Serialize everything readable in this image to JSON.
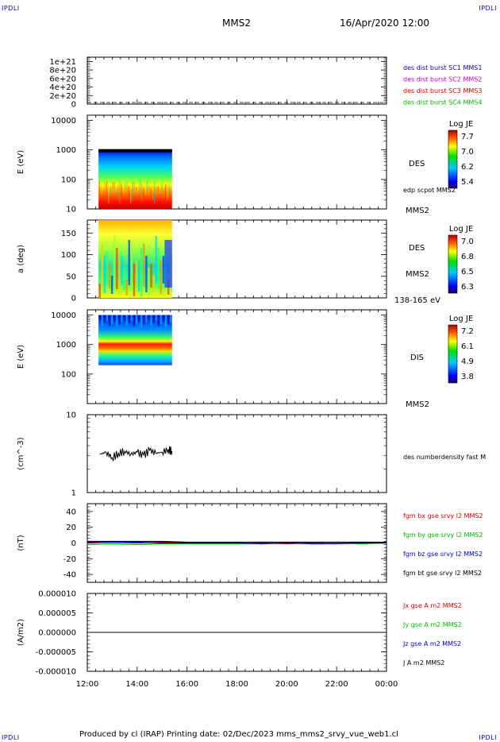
{
  "header": {
    "corner_tl": "IPDLI",
    "corner_tr": "IPDLI",
    "corner_bl": "IPDLI",
    "corner_br": "IPDLI",
    "spacecraft": "MMS2",
    "date": "16/Apr/2020 12:00"
  },
  "footer": {
    "text": "Produced by cl (IRAP)   Printing date: 02/Dec/2023   mms_mms2_srvy_vue_web1.cl"
  },
  "colors": {
    "mms1": "#0000cc",
    "mms2": "#cc00cc",
    "mms3": "#dd0000",
    "mms4": "#00bb00",
    "bx": "#dd0000",
    "by": "#00bb00",
    "bz": "#0000cc",
    "bt": "#000000"
  },
  "chart_data": [
    {
      "id": "panel1",
      "type": "line",
      "ylim": [
        0,
        1.1e+21
      ],
      "yticks": [
        "0",
        "2e+20",
        "4e+20",
        "6e+20",
        "8e+20",
        "1e+21"
      ],
      "ytick_values": [
        0,
        2e+20,
        4e+20,
        6e+20,
        8e+20,
        1e+21
      ],
      "series": [
        {
          "name": "des dist burst SC1 MMS1",
          "color": "#0000cc"
        },
        {
          "name": "des dist burst SC2 MMS2",
          "color": "#cc00cc"
        },
        {
          "name": "des dist burst SC3 MMS3",
          "color": "#dd0000"
        },
        {
          "name": "des dist burst SC4 MMS4",
          "color": "#00bb00"
        }
      ],
      "baseline_dashed": 0
    },
    {
      "id": "panel2",
      "type": "heatmap",
      "ylabel": "E (eV)",
      "yscale": "log",
      "ylim": [
        10,
        15000
      ],
      "yticks": [
        "10",
        "100",
        "1000",
        "10000"
      ],
      "ytick_values": [
        10,
        100,
        1000,
        10000
      ],
      "data_range_hours": [
        12.45,
        15.4
      ],
      "data_ylim": [
        10,
        1000
      ],
      "label": "DES",
      "overlay_label": "edp scpot MMS2",
      "spacecraft": "MMS2",
      "colorbar": {
        "title": "Log JE",
        "ticks": [
          "7.7",
          "7.0",
          "6.2",
          "5.4"
        ]
      }
    },
    {
      "id": "panel3",
      "type": "heatmap",
      "ylabel": "a (deg)",
      "ylim": [
        0,
        180
      ],
      "yticks": [
        "0",
        "50",
        "100",
        "150"
      ],
      "ytick_values": [
        0,
        50,
        100,
        150
      ],
      "data_range_hours": [
        12.45,
        15.4
      ],
      "label": "DES",
      "spacecraft": "MMS2",
      "energy_range": "138-165 eV",
      "colorbar": {
        "title": "Log JE",
        "ticks": [
          "7.0",
          "6.8",
          "6.5",
          "6.3"
        ]
      }
    },
    {
      "id": "panel4",
      "type": "heatmap",
      "ylabel": "E (eV)",
      "yscale": "log",
      "ylim": [
        10,
        15000
      ],
      "yticks": [
        "100",
        "1000",
        "10000"
      ],
      "ytick_values": [
        100,
        1000,
        10000
      ],
      "data_range_hours": [
        12.45,
        15.4
      ],
      "data_ylim": [
        200,
        10000
      ],
      "label": "DIS",
      "spacecraft": "MMS2",
      "colorbar": {
        "title": "Log JE",
        "ticks": [
          "7.2",
          "6.1",
          "4.9",
          "3.8"
        ]
      }
    },
    {
      "id": "panel5",
      "type": "line",
      "ylabel": "(cm^-3)",
      "yscale": "log",
      "ylim": [
        1,
        10
      ],
      "yticks": [
        "1",
        "10"
      ],
      "ytick_values": [
        1,
        10
      ],
      "series": [
        {
          "name": "des numberdensity fast M",
          "color": "#000000",
          "x": [
            12.5,
            12.75,
            13.0,
            13.25,
            13.5,
            13.75,
            14.0,
            14.25,
            14.5,
            14.75,
            15.0,
            15.25,
            15.4
          ],
          "y": [
            3.1,
            3.3,
            2.8,
            3.2,
            3.4,
            3.1,
            3.3,
            3.0,
            3.5,
            3.2,
            3.3,
            3.6,
            3.4
          ]
        }
      ]
    },
    {
      "id": "panel6",
      "type": "line",
      "ylabel": "(nT)",
      "ylim": [
        -50,
        50
      ],
      "yticks": [
        "-40",
        "-20",
        "0",
        "20",
        "40"
      ],
      "ytick_values": [
        -40,
        -20,
        0,
        20,
        40
      ],
      "x": [
        12,
        13,
        14,
        15,
        16,
        17,
        18,
        19,
        20,
        21,
        22,
        23,
        24
      ],
      "series": [
        {
          "name": "fgm bx gse srvy l2 MMS2",
          "color": "#dd0000",
          "values": [
            1,
            1,
            0,
            1,
            0,
            0,
            -1,
            0,
            -1,
            0,
            1,
            0,
            0
          ]
        },
        {
          "name": "fgm by gse srvy l2 MMS2",
          "color": "#00bb00",
          "values": [
            -2,
            -1,
            -2,
            -1,
            -1,
            -1,
            -1,
            -1,
            0,
            -1,
            0,
            -1,
            0
          ]
        },
        {
          "name": "fgm bz gse srvy l2 MMS2",
          "color": "#0000cc",
          "values": [
            0,
            1,
            1,
            0,
            0,
            0,
            0,
            -1,
            0,
            -1,
            -1,
            0,
            0
          ]
        },
        {
          "name": "fgm bt gse srvy l2 MMS2",
          "color": "#000000",
          "values": [
            2,
            2,
            2,
            2,
            1,
            1,
            1,
            1,
            1,
            1,
            1,
            1,
            1
          ]
        }
      ]
    },
    {
      "id": "panel7",
      "type": "line",
      "ylabel": "(A/m2)",
      "ylim": [
        -1e-05,
        1e-05
      ],
      "yticks": [
        "-0.000010",
        "-0.000005",
        "0.000000",
        "0.000005",
        "0.000010"
      ],
      "ytick_values": [
        -1e-05,
        -5e-06,
        0,
        5e-06,
        1e-05
      ],
      "x": [
        12,
        24
      ],
      "series": [
        {
          "name": "Jx gse A m2 MMS2",
          "color": "#dd0000",
          "values": [
            0,
            0
          ]
        },
        {
          "name": "Jy gse A m2 MMS2",
          "color": "#00bb00",
          "values": [
            0,
            0
          ]
        },
        {
          "name": "Jz gse A m2 MMS2",
          "color": "#0000cc",
          "values": [
            0,
            0
          ]
        },
        {
          "name": "J A m2 MMS2",
          "color": "#000000",
          "values": [
            0,
            0
          ]
        }
      ]
    }
  ],
  "xaxis": {
    "xlim": [
      12,
      24
    ],
    "ticks": [
      "12:00",
      "14:00",
      "16:00",
      "18:00",
      "20:00",
      "22:00",
      "00:00"
    ],
    "tick_values": [
      12,
      14,
      16,
      18,
      20,
      22,
      24
    ]
  }
}
